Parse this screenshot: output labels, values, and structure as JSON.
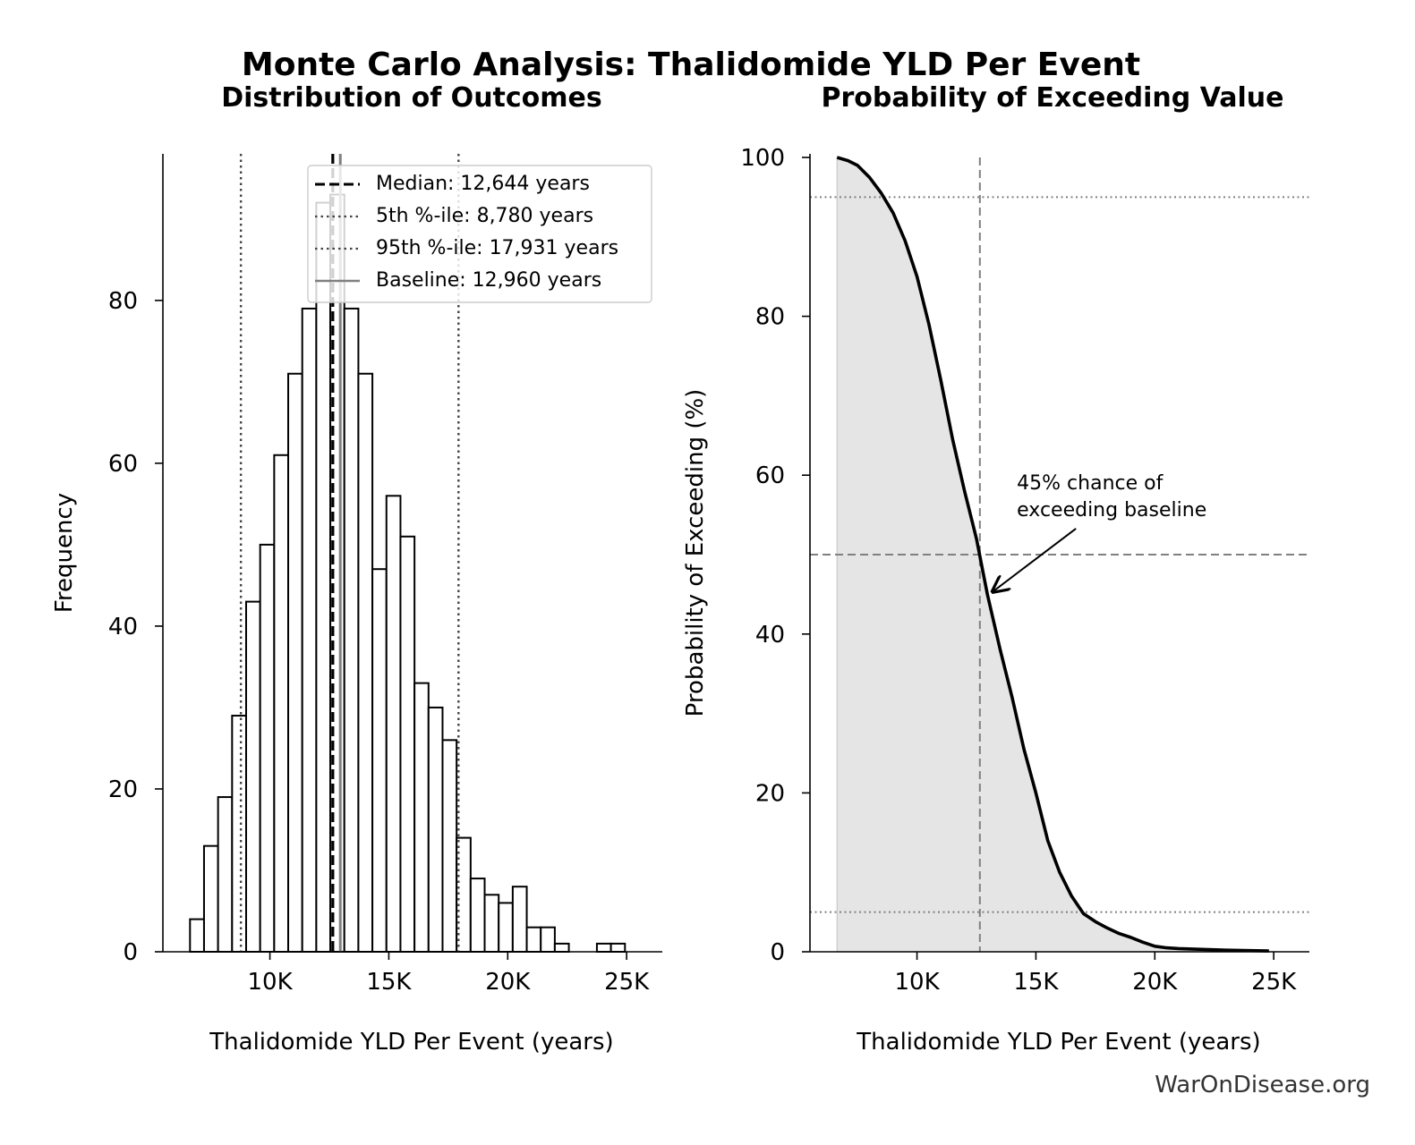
{
  "figure": {
    "title": "Monte Carlo Analysis: Thalidomide YLD Per Event",
    "watermark": "WarOnDisease.org"
  },
  "colors": {
    "bar_edge": "#000000",
    "bar_fill": "#ffffff",
    "median_line": "#000000",
    "percentile_line": "#444444",
    "baseline_line": "#808080",
    "curve": "#000000",
    "area_fill": "#e5e5e5",
    "reference_line": "#808080"
  },
  "chart_data": [
    {
      "type": "bar",
      "title": "Distribution of Outcomes",
      "xlabel": "Thalidomide YLD Per Event (years)",
      "ylabel": "Frequency",
      "xlim": [
        5500,
        26500
      ],
      "ylim": [
        0,
        98
      ],
      "xticks": [
        10000,
        15000,
        20000,
        25000
      ],
      "xtick_labels": [
        "10K",
        "15K",
        "20K",
        "25K"
      ],
      "yticks": [
        0,
        20,
        40,
        60,
        80
      ],
      "ytick_labels": [
        "0",
        "20",
        "40",
        "60",
        "80"
      ],
      "bin_start": 6640,
      "bin_width": 590,
      "values": [
        4,
        13,
        19,
        29,
        43,
        50,
        61,
        71,
        79,
        92,
        93,
        79,
        71,
        47,
        56,
        51,
        33,
        30,
        26,
        14,
        9,
        7,
        6,
        8,
        3,
        3,
        1,
        0,
        0,
        1,
        1
      ],
      "reference_lines": [
        {
          "name": "Median: 12,644 years",
          "x": 12644,
          "style": "dashed",
          "color": "#000000"
        },
        {
          "name": "5th %-ile: 8,780 years",
          "x": 8780,
          "style": "dotted",
          "color": "#444444"
        },
        {
          "name": "95th %-ile: 17,931 years",
          "x": 17931,
          "style": "dotted",
          "color": "#444444"
        },
        {
          "name": "Baseline: 12,960 years",
          "x": 12960,
          "style": "solid",
          "color": "#808080"
        }
      ],
      "legend_position": "top-right",
      "grid": false
    },
    {
      "type": "area",
      "title": "Probability of Exceeding Value",
      "xlabel": "Thalidomide YLD Per Event (years)",
      "ylabel": "Probability of Exceeding (%)",
      "xlim": [
        5500,
        26500
      ],
      "ylim": [
        0,
        100
      ],
      "xticks": [
        10000,
        15000,
        20000,
        25000
      ],
      "xtick_labels": [
        "10K",
        "15K",
        "20K",
        "25K"
      ],
      "yticks": [
        0,
        20,
        40,
        60,
        80,
        100
      ],
      "ytick_labels": [
        "0",
        "20",
        "40",
        "60",
        "80",
        "100"
      ],
      "x": [
        6640,
        7100,
        7500,
        8000,
        8500,
        9000,
        9500,
        10000,
        10500,
        11000,
        11500,
        12000,
        12500,
        12960,
        13500,
        14000,
        14500,
        15000,
        15500,
        16000,
        16500,
        17000,
        17500,
        18000,
        18500,
        19000,
        19500,
        20000,
        20500,
        21000,
        22000,
        23000,
        24000,
        24800
      ],
      "y": [
        100,
        99.6,
        99,
        97.5,
        95.5,
        93,
        89.5,
        85,
        79,
        72,
        64.5,
        58,
        52,
        45,
        38,
        32,
        25.5,
        20,
        14,
        10,
        7,
        4.8,
        3.8,
        3,
        2.3,
        1.8,
        1.2,
        0.7,
        0.5,
        0.4,
        0.3,
        0.2,
        0.15,
        0.1
      ],
      "reference_lines": [
        {
          "axis": "x",
          "value": 12644,
          "style": "dashed"
        },
        {
          "axis": "y",
          "value": 95,
          "style": "dotted"
        },
        {
          "axis": "y",
          "value": 50,
          "style": "dashed"
        },
        {
          "axis": "y",
          "value": 5,
          "style": "dotted"
        }
      ],
      "annotation": {
        "lines": [
          "45% chance of",
          "exceeding baseline"
        ],
        "point": [
          12960,
          45
        ],
        "text_at": [
          14200,
          58
        ]
      },
      "grid": false
    }
  ]
}
